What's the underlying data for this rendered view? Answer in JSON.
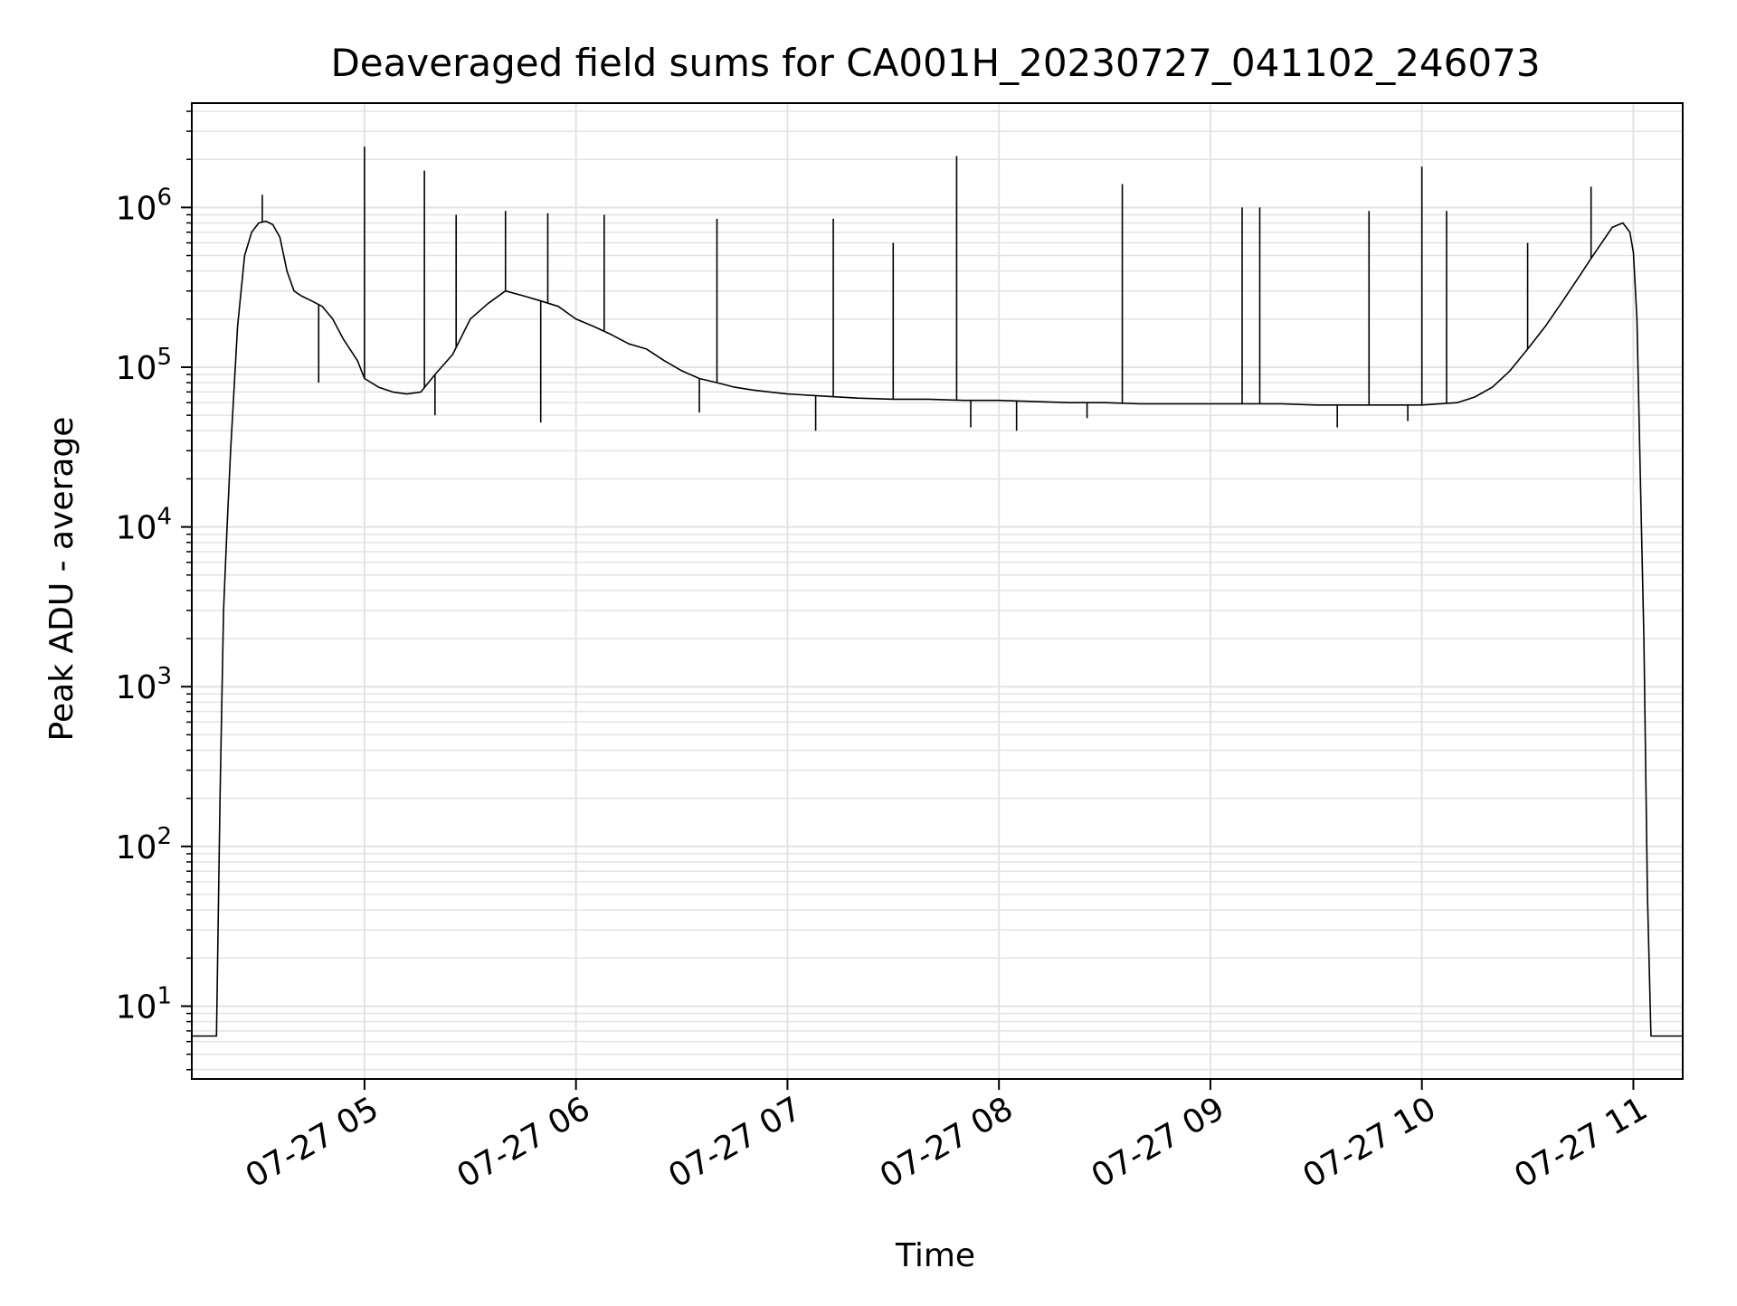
{
  "chart_data": {
    "type": "line",
    "title": "Deaveraged field sums for CA001H_20230727_041102_246073",
    "xlabel": "Time",
    "ylabel": "Peak ADU - average",
    "yscale": "log",
    "xlim": [
      "2023-07-27 04:11",
      "2023-07-27 11:14"
    ],
    "ylim": [
      3.5,
      4500000
    ],
    "grid": true,
    "line_color": "#000000",
    "x_ticks": [
      {
        "value": "2023-07-27 05:00",
        "label": "07-27 05"
      },
      {
        "value": "2023-07-27 06:00",
        "label": "07-27 06"
      },
      {
        "value": "2023-07-27 07:00",
        "label": "07-27 07"
      },
      {
        "value": "2023-07-27 08:00",
        "label": "07-27 08"
      },
      {
        "value": "2023-07-27 09:00",
        "label": "07-27 09"
      },
      {
        "value": "2023-07-27 10:00",
        "label": "07-27 10"
      },
      {
        "value": "2023-07-27 11:00",
        "label": "07-27 11"
      }
    ],
    "y_ticks": [
      {
        "value": 10,
        "base": "10",
        "exp": "1"
      },
      {
        "value": 100,
        "base": "10",
        "exp": "2"
      },
      {
        "value": 1000,
        "base": "10",
        "exp": "3"
      },
      {
        "value": 10000,
        "base": "10",
        "exp": "4"
      },
      {
        "value": 100000,
        "base": "10",
        "exp": "5"
      },
      {
        "value": 1000000,
        "base": "10",
        "exp": "6"
      }
    ],
    "series": [
      {
        "x": [
          "2023-07-27 04:11",
          "2023-07-27 04:18",
          "2023-07-27 04:19",
          "2023-07-27 04:20",
          "2023-07-27 04:21",
          "2023-07-27 04:22",
          "2023-07-27 04:24",
          "2023-07-27 04:26",
          "2023-07-27 04:28",
          "2023-07-27 04:30",
          "2023-07-27 04:32",
          "2023-07-27 04:34",
          "2023-07-27 04:36",
          "2023-07-27 04:38",
          "2023-07-27 04:40",
          "2023-07-27 04:42",
          "2023-07-27 04:45",
          "2023-07-27 04:48",
          "2023-07-27 04:51",
          "2023-07-27 04:54",
          "2023-07-27 04:58",
          "2023-07-27 05:00",
          "2023-07-27 05:04",
          "2023-07-27 05:08",
          "2023-07-27 05:12",
          "2023-07-27 05:16",
          "2023-07-27 05:20",
          "2023-07-27 05:25",
          "2023-07-27 05:30",
          "2023-07-27 05:35",
          "2023-07-27 05:40",
          "2023-07-27 05:45",
          "2023-07-27 05:50",
          "2023-07-27 05:55",
          "2023-07-27 06:00",
          "2023-07-27 06:05",
          "2023-07-27 06:10",
          "2023-07-27 06:15",
          "2023-07-27 06:20",
          "2023-07-27 06:25",
          "2023-07-27 06:30",
          "2023-07-27 06:35",
          "2023-07-27 06:40",
          "2023-07-27 06:45",
          "2023-07-27 06:50",
          "2023-07-27 06:55",
          "2023-07-27 07:00",
          "2023-07-27 07:10",
          "2023-07-27 07:20",
          "2023-07-27 07:30",
          "2023-07-27 07:40",
          "2023-07-27 07:50",
          "2023-07-27 08:00",
          "2023-07-27 08:10",
          "2023-07-27 08:20",
          "2023-07-27 08:30",
          "2023-07-27 08:40",
          "2023-07-27 08:50",
          "2023-07-27 09:00",
          "2023-07-27 09:10",
          "2023-07-27 09:20",
          "2023-07-27 09:30",
          "2023-07-27 09:40",
          "2023-07-27 09:50",
          "2023-07-27 10:00",
          "2023-07-27 10:10",
          "2023-07-27 10:15",
          "2023-07-27 10:20",
          "2023-07-27 10:25",
          "2023-07-27 10:30",
          "2023-07-27 10:35",
          "2023-07-27 10:40",
          "2023-07-27 10:45",
          "2023-07-27 10:48",
          "2023-07-27 10:51",
          "2023-07-27 10:54",
          "2023-07-27 10:57",
          "2023-07-27 10:59",
          "2023-07-27 11:00",
          "2023-07-27 11:01",
          "2023-07-27 11:02",
          "2023-07-27 11:03",
          "2023-07-27 11:04",
          "2023-07-27 11:05",
          "2023-07-27 11:06",
          "2023-07-27 11:14"
        ],
        "y": [
          6.5,
          6.5,
          200,
          3000,
          10000,
          30000,
          180000,
          500000,
          700000,
          800000,
          820000,
          780000,
          650000,
          400000,
          300000,
          280000,
          260000,
          240000,
          200000,
          150000,
          110000,
          85000,
          75000,
          70000,
          68000,
          70000,
          90000,
          120000,
          200000,
          250000,
          300000,
          280000,
          260000,
          240000,
          200000,
          180000,
          160000,
          140000,
          130000,
          110000,
          95000,
          85000,
          80000,
          75000,
          72000,
          70000,
          68000,
          66000,
          64000,
          63000,
          63000,
          62000,
          62000,
          61000,
          60000,
          60000,
          59000,
          59000,
          59000,
          59000,
          59000,
          58000,
          58000,
          58000,
          58000,
          60000,
          65000,
          75000,
          95000,
          130000,
          180000,
          260000,
          380000,
          480000,
          600000,
          750000,
          800000,
          700000,
          520000,
          200000,
          20000,
          2000,
          50,
          6.5,
          6.5,
          6.5
        ]
      }
    ],
    "spikes": [
      {
        "x": "2023-07-27 04:31",
        "y": 1200000
      },
      {
        "x": "2023-07-27 04:47",
        "y": 80000
      },
      {
        "x": "2023-07-27 05:00",
        "y": 2400000
      },
      {
        "x": "2023-07-27 05:17",
        "y": 1700000
      },
      {
        "x": "2023-07-27 05:26",
        "y": 900000
      },
      {
        "x": "2023-07-27 05:40",
        "y": 950000
      },
      {
        "x": "2023-07-27 05:52",
        "y": 920000
      },
      {
        "x": "2023-07-27 06:08",
        "y": 900000
      },
      {
        "x": "2023-07-27 06:40",
        "y": 850000
      },
      {
        "x": "2023-07-27 07:13",
        "y": 850000
      },
      {
        "x": "2023-07-27 07:30",
        "y": 600000
      },
      {
        "x": "2023-07-27 07:48",
        "y": 2100000
      },
      {
        "x": "2023-07-27 08:35",
        "y": 1400000
      },
      {
        "x": "2023-07-27 09:09",
        "y": 1000000
      },
      {
        "x": "2023-07-27 09:14",
        "y": 1000000
      },
      {
        "x": "2023-07-27 09:45",
        "y": 950000
      },
      {
        "x": "2023-07-27 10:00",
        "y": 1800000
      },
      {
        "x": "2023-07-27 10:07",
        "y": 950000
      },
      {
        "x": "2023-07-27 10:30",
        "y": 600000
      },
      {
        "x": "2023-07-27 10:48",
        "y": 1350000
      }
    ],
    "dips": [
      {
        "x": "2023-07-27 05:20",
        "y": 50000
      },
      {
        "x": "2023-07-27 05:50",
        "y": 45000
      },
      {
        "x": "2023-07-27 06:35",
        "y": 52000
      },
      {
        "x": "2023-07-27 07:08",
        "y": 40000
      },
      {
        "x": "2023-07-27 07:52",
        "y": 42000
      },
      {
        "x": "2023-07-27 08:05",
        "y": 40000
      },
      {
        "x": "2023-07-27 08:25",
        "y": 48000
      },
      {
        "x": "2023-07-27 09:36",
        "y": 42000
      },
      {
        "x": "2023-07-27 09:56",
        "y": 46000
      }
    ]
  }
}
